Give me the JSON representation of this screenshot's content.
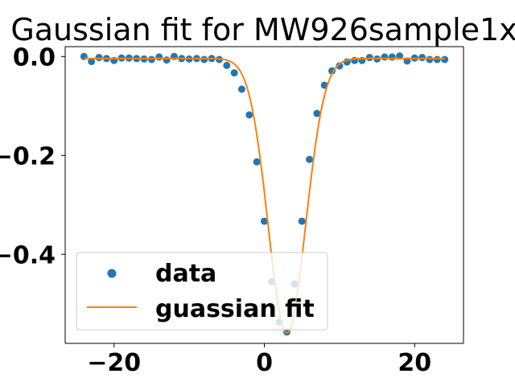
{
  "chart_data": {
    "type": "scatter",
    "title": "Gaussian fit for MW926sample1x",
    "xlabel": "",
    "ylabel": "",
    "xlim": [
      -26.5,
      26.5
    ],
    "ylim": [
      -0.58,
      0.02
    ],
    "xticks": [
      -20,
      0,
      20
    ],
    "xtick_labels": [
      "−20",
      "0",
      "20"
    ],
    "yticks": [
      0.0,
      -0.2,
      -0.4
    ],
    "ytick_labels": [
      "0.0",
      "−0.2",
      "−0.4"
    ],
    "grid": false,
    "legend_position": "lower-left",
    "series": [
      {
        "name": "data",
        "kind": "scatter",
        "color": "#1f77b4",
        "x": [
          -24,
          -23,
          -22,
          -21,
          -20,
          -19,
          -18,
          -17,
          -16,
          -15,
          -14,
          -13,
          -12,
          -11,
          -10,
          -9,
          -8,
          -7,
          -6,
          -5,
          -4,
          -3,
          -2,
          -1,
          0,
          1,
          2,
          3,
          4,
          5,
          6,
          7,
          8,
          9,
          10,
          11,
          12,
          13,
          14,
          15,
          16,
          17,
          18,
          19,
          20,
          21,
          22,
          23,
          24
        ],
        "y": [
          0.0,
          -0.01,
          -0.002,
          -0.004,
          -0.008,
          -0.003,
          -0.003,
          -0.004,
          -0.005,
          -0.006,
          -0.001,
          -0.007,
          0.0,
          -0.004,
          -0.005,
          -0.004,
          -0.006,
          -0.004,
          -0.006,
          -0.018,
          -0.033,
          -0.066,
          -0.118,
          -0.213,
          -0.333,
          -0.455,
          -0.537,
          -0.557,
          -0.46,
          -0.333,
          -0.208,
          -0.115,
          -0.058,
          -0.029,
          -0.019,
          -0.011,
          -0.008,
          -0.008,
          -0.002,
          -0.005,
          -0.001,
          -0.001,
          0.001,
          -0.009,
          -0.003,
          -0.002,
          -0.006,
          -0.006,
          -0.006
        ]
      },
      {
        "name": "guassian fit",
        "kind": "line",
        "color": "#ff7f0e",
        "gaussian": {
          "amplitude": -0.555,
          "center": 3.0,
          "sigma": 2.5,
          "offset": -0.004
        },
        "x_range": [
          -24,
          24
        ]
      }
    ]
  }
}
